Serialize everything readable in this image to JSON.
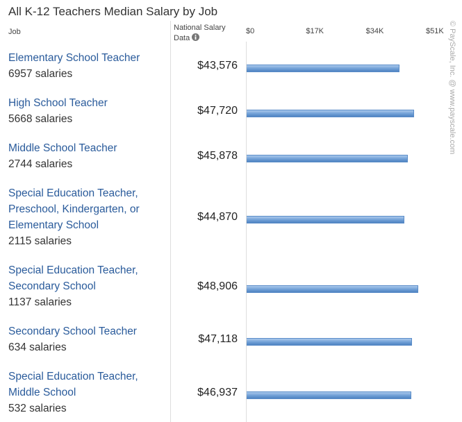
{
  "chart_data": {
    "type": "bar",
    "orientation": "horizontal",
    "title": "All K-12 Teachers Median Salary by Job",
    "column_headers": [
      "Job",
      "National Salary Data"
    ],
    "categories": [
      "Elementary School Teacher",
      "High School Teacher",
      "Middle School Teacher",
      "Special Education Teacher, Preschool, Kindergarten, or Elementary School",
      "Special Education Teacher, Secondary School",
      "Secondary School Teacher",
      "Special Education Teacher, Middle School"
    ],
    "counts": [
      "6957 salaries",
      "5668 salaries",
      "2744 salaries",
      "2115 salaries",
      "1137 salaries",
      "634 salaries",
      "532 salaries"
    ],
    "values": [
      43576,
      47720,
      45878,
      44870,
      48906,
      47118,
      46937
    ],
    "value_labels": [
      "$43,576",
      "$47,720",
      "$45,878",
      "$44,870",
      "$48,906",
      "$47,118",
      "$46,937"
    ],
    "color": "#6f9fd6",
    "xlim": [
      0,
      51000
    ],
    "xticks": [
      {
        "value": 0,
        "label": "$0"
      },
      {
        "value": 17000,
        "label": "$17K"
      },
      {
        "value": 34000,
        "label": "$34K"
      },
      {
        "value": 51000,
        "label": "$51K"
      }
    ],
    "credit": "© PayScale, Inc. @ www.payscale.com"
  }
}
